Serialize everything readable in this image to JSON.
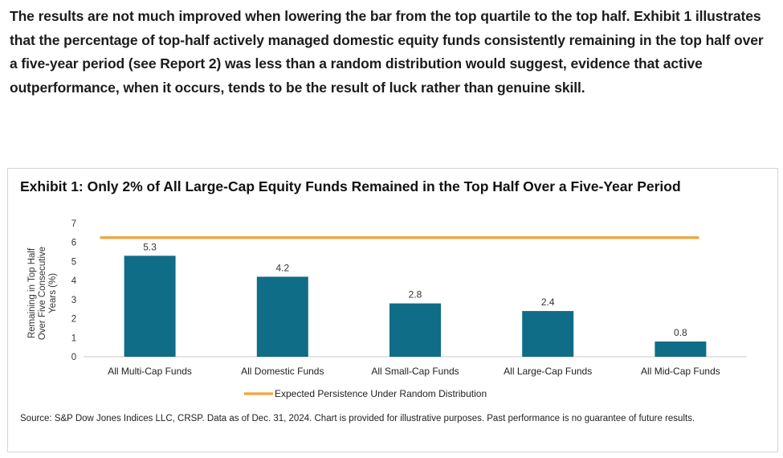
{
  "intro": {
    "paragraph": "The results are not much improved when lowering the bar from the top quartile to the top half. Exhibit 1 illustrates that the percentage of top-half actively managed domestic equity funds consistently remaining in the top half over a five-year period (see Report 2) was less than a random distribution would suggest, evidence that active outperformance, when it occurs, tends to be the result of luck rather than genuine skill."
  },
  "chart_data": {
    "type": "bar",
    "title": "Exhibit 1: Only 2% of All Large-Cap Equity Funds Remained in the Top Half Over a Five-Year Period",
    "ylabel": "Remaining in Top Half Over Five Consecutive Years (%)",
    "xlabel": "",
    "ylim": [
      0,
      7
    ],
    "yticks": [
      "0",
      "1",
      "2",
      "3",
      "4",
      "5",
      "6",
      "7"
    ],
    "grid": false,
    "legend_position": "bottom",
    "categories": [
      "All Multi-Cap Funds",
      "All Domestic Funds",
      "All Small-Cap Funds",
      "All Large-Cap Funds",
      "All Mid-Cap Funds"
    ],
    "values": [
      5.3,
      4.2,
      2.8,
      2.4,
      0.8
    ],
    "value_labels": [
      "5.3",
      "4.2",
      "2.8",
      "2.4",
      "0.8"
    ],
    "reference_line": {
      "name": "Expected Persistence Under Random Distribution",
      "value": 6.25
    },
    "bar_color": "#0f6d87",
    "line_color": "#f2a33a",
    "axis_color": "#c8c8c8"
  },
  "source": "Source: S&P Dow Jones Indices LLC, CRSP. Data as of Dec. 31, 2024. Chart is provided for illustrative purposes. Past performance is no guarantee of future results."
}
